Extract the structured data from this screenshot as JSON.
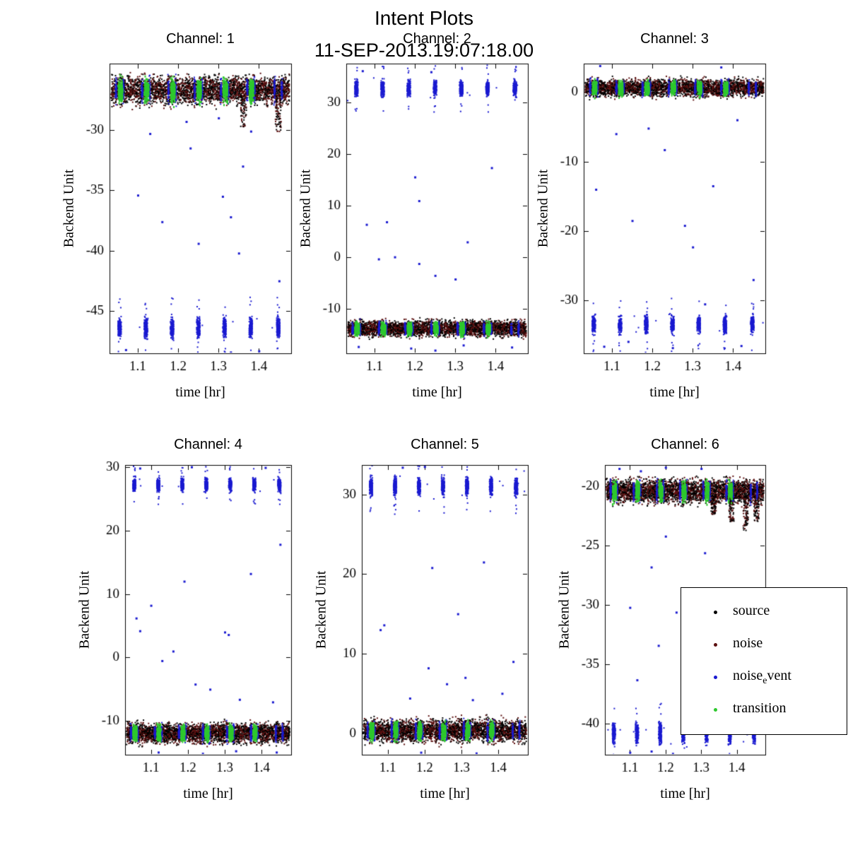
{
  "figure": {
    "title": "Intent Plots",
    "subtitle": "11-SEP-2013.19:07:18.00"
  },
  "colors": {
    "source": "#000000",
    "noise": "#5c1010",
    "noise_event": "#1a1ad0",
    "transition": "#2ec82e",
    "axis": "#000000",
    "background": "#ffffff"
  },
  "legend": {
    "position": "bottom-right-overlay",
    "items": [
      {
        "pre": "source",
        "sub": "",
        "post": "",
        "color": "#000000"
      },
      {
        "pre": "noise",
        "sub": "",
        "post": "",
        "color": "#5c1010"
      },
      {
        "pre": "noise",
        "sub": "e",
        "post": "vent",
        "color": "#1a1ad0"
      },
      {
        "pre": "transition",
        "sub": "",
        "post": "",
        "color": "#2ec82e"
      }
    ]
  },
  "chart_data": [
    {
      "type": "scatter",
      "grid": false,
      "title": "Channel: 1",
      "xlabel": "time [hr]",
      "ylabel": "Backend Unit",
      "xlim": [
        1.03,
        1.48
      ],
      "ylim": [
        -48.5,
        -24.5
      ],
      "xticks": [
        1.1,
        1.2,
        1.3,
        1.4
      ],
      "yticks": [
        -30,
        -35,
        -40,
        -45
      ],
      "cluster_xs": [
        1.055,
        1.12,
        1.185,
        1.25,
        1.315,
        1.38,
        1.448
      ],
      "transition_xs": [
        1.057,
        1.122,
        1.187,
        1.252,
        1.317,
        1.382
      ],
      "band": {
        "y": -26.7,
        "half": 1.5,
        "drips": [
          {
            "x": 1.362,
            "depth": 2.6
          },
          {
            "x": 1.448,
            "depth": 3.0
          }
        ]
      },
      "event": {
        "y": -46.4,
        "half": 1.3
      },
      "outliers": [
        [
          1.13,
          -30.3
        ],
        [
          1.22,
          -29.3
        ],
        [
          1.1,
          -35.4
        ],
        [
          1.16,
          -37.6
        ],
        [
          1.25,
          -39.4
        ],
        [
          1.31,
          -35.5
        ],
        [
          1.33,
          -37.2
        ],
        [
          1.3,
          -29.0
        ],
        [
          1.36,
          -33.0
        ],
        [
          1.38,
          -30.1
        ],
        [
          1.35,
          -40.2
        ],
        [
          1.45,
          -42.5
        ],
        [
          1.23,
          -31.5
        ],
        [
          1.07,
          -48.2
        ],
        [
          1.33,
          -48.4
        ],
        [
          1.4,
          -48.3
        ],
        [
          1.46,
          -48.5
        ]
      ]
    },
    {
      "type": "scatter",
      "grid": false,
      "title": "Channel: 2",
      "xlabel": "time [hr]",
      "ylabel": "Backend Unit",
      "xlim": [
        1.03,
        1.48
      ],
      "ylim": [
        -18.6,
        37.6
      ],
      "xticks": [
        1.1,
        1.2,
        1.3,
        1.4
      ],
      "yticks": [
        30,
        20,
        10,
        0,
        -10
      ],
      "cluster_xs": [
        1.055,
        1.12,
        1.185,
        1.25,
        1.315,
        1.38,
        1.448
      ],
      "transition_xs": [
        1.057,
        1.122,
        1.187,
        1.252,
        1.317,
        1.382
      ],
      "band": {
        "y": -13.8,
        "half": 2.0,
        "drips": []
      },
      "event": {
        "y": 32.8,
        "half": 2.2
      },
      "outliers": [
        [
          1.2,
          15.6
        ],
        [
          1.39,
          17.4
        ],
        [
          1.21,
          11.0
        ],
        [
          1.13,
          6.9
        ],
        [
          1.08,
          6.4
        ],
        [
          1.15,
          0.1
        ],
        [
          1.25,
          -3.5
        ],
        [
          1.21,
          -1.2
        ],
        [
          1.3,
          -4.2
        ],
        [
          1.11,
          -0.3
        ],
        [
          1.33,
          3.0
        ],
        [
          1.06,
          -17.3
        ],
        [
          1.19,
          -17.6
        ],
        [
          1.32,
          -17.0
        ],
        [
          1.44,
          -17.4
        ],
        [
          1.25,
          -18.0
        ],
        [
          1.07,
          36.2
        ],
        [
          1.24,
          36.0
        ]
      ]
    },
    {
      "type": "scatter",
      "grid": false,
      "title": "Channel: 3",
      "xlabel": "time [hr]",
      "ylabel": "Backend Unit",
      "xlim": [
        1.03,
        1.48
      ],
      "ylim": [
        -37.6,
        4.1
      ],
      "xticks": [
        1.1,
        1.2,
        1.3,
        1.4
      ],
      "yticks": [
        0,
        -10,
        -20,
        -30
      ],
      "cluster_xs": [
        1.055,
        1.12,
        1.185,
        1.25,
        1.315,
        1.38,
        1.448
      ],
      "transition_xs": [
        1.057,
        1.122,
        1.187,
        1.252,
        1.317,
        1.382
      ],
      "band": {
        "y": 0.6,
        "half": 1.6,
        "drips": []
      },
      "event": {
        "y": -33.5,
        "half": 1.9
      },
      "outliers": [
        [
          1.11,
          -6.0
        ],
        [
          1.19,
          -5.2
        ],
        [
          1.06,
          -14.0
        ],
        [
          1.15,
          -18.5
        ],
        [
          1.23,
          -8.3
        ],
        [
          1.28,
          -19.2
        ],
        [
          1.3,
          -22.3
        ],
        [
          1.35,
          -13.5
        ],
        [
          1.41,
          -4.0
        ],
        [
          1.45,
          -27.0
        ],
        [
          1.33,
          -30.5
        ],
        [
          1.08,
          -36.6
        ],
        [
          1.25,
          -36.8
        ],
        [
          1.42,
          -36.5
        ],
        [
          1.14,
          -35.9
        ],
        [
          1.07,
          3.8
        ],
        [
          1.37,
          3.6
        ]
      ]
    },
    {
      "type": "scatter",
      "grid": false,
      "title": "Channel: 4",
      "xlabel": "time [hr]",
      "ylabel": "Backend Unit",
      "xlim": [
        1.03,
        1.48
      ],
      "ylim": [
        -15.3,
        30.3
      ],
      "xticks": [
        1.1,
        1.2,
        1.3,
        1.4
      ],
      "yticks": [
        30,
        20,
        10,
        0,
        -10
      ],
      "cluster_xs": [
        1.055,
        1.12,
        1.185,
        1.25,
        1.315,
        1.38,
        1.448
      ],
      "transition_xs": [
        1.057,
        1.122,
        1.187,
        1.252,
        1.317,
        1.382
      ],
      "band": {
        "y": -11.9,
        "half": 2.0,
        "drips": []
      },
      "event": {
        "y": 27.2,
        "half": 1.5
      },
      "outliers": [
        [
          1.07,
          29.8
        ],
        [
          1.45,
          17.8
        ],
        [
          1.37,
          13.2
        ],
        [
          1.19,
          12.0
        ],
        [
          1.1,
          8.2
        ],
        [
          1.06,
          6.2
        ],
        [
          1.07,
          4.2
        ],
        [
          1.16,
          1.0
        ],
        [
          1.3,
          4.0
        ],
        [
          1.31,
          3.6
        ],
        [
          1.13,
          -0.5
        ],
        [
          1.22,
          -4.2
        ],
        [
          1.26,
          -5.0
        ],
        [
          1.34,
          -6.6
        ],
        [
          1.43,
          -7.0
        ],
        [
          1.12,
          -14.9
        ],
        [
          1.24,
          -15.1
        ],
        [
          1.33,
          -14.7
        ],
        [
          1.44,
          -14.9
        ],
        [
          1.21,
          30.0
        ],
        [
          1.41,
          29.9
        ]
      ]
    },
    {
      "type": "scatter",
      "grid": false,
      "title": "Channel: 5",
      "xlabel": "time [hr]",
      "ylabel": "Backend Unit",
      "xlim": [
        1.03,
        1.48
      ],
      "ylim": [
        -2.7,
        33.7
      ],
      "xticks": [
        1.1,
        1.2,
        1.3,
        1.4
      ],
      "yticks": [
        30,
        20,
        10,
        0
      ],
      "cluster_xs": [
        1.055,
        1.12,
        1.185,
        1.25,
        1.315,
        1.38,
        1.448
      ],
      "transition_xs": [
        1.057,
        1.122,
        1.187,
        1.252,
        1.317,
        1.382
      ],
      "band": {
        "y": 0.3,
        "half": 1.8,
        "drips": []
      },
      "event": {
        "y": 31.0,
        "half": 1.7
      },
      "outliers": [
        [
          1.22,
          20.8
        ],
        [
          1.36,
          21.5
        ],
        [
          1.29,
          15.0
        ],
        [
          1.09,
          13.6
        ],
        [
          1.08,
          13.0
        ],
        [
          1.21,
          8.2
        ],
        [
          1.31,
          7.0
        ],
        [
          1.26,
          6.2
        ],
        [
          1.41,
          5.0
        ],
        [
          1.16,
          4.4
        ],
        [
          1.14,
          33.4
        ],
        [
          1.2,
          33.5
        ],
        [
          1.33,
          4.2
        ],
        [
          1.44,
          9.0
        ],
        [
          1.19,
          -2.4
        ],
        [
          1.34,
          -2.5
        ]
      ]
    },
    {
      "type": "scatter",
      "grid": false,
      "title": "Channel: 6",
      "xlabel": "time [hr]",
      "ylabel": "Backend Unit",
      "xlim": [
        1.03,
        1.48
      ],
      "ylim": [
        -42.6,
        -18.2
      ],
      "xticks": [
        1.1,
        1.2,
        1.3,
        1.4
      ],
      "yticks": [
        -20,
        -25,
        -30,
        -35,
        -40
      ],
      "cluster_xs": [
        1.055,
        1.12,
        1.185,
        1.25,
        1.315,
        1.38,
        1.448
      ],
      "transition_xs": [
        1.057,
        1.122,
        1.187,
        1.252,
        1.317,
        1.382
      ],
      "band": {
        "y": -20.4,
        "half": 1.3,
        "drips": [
          {
            "x": 1.335,
            "depth": 1.6
          },
          {
            "x": 1.385,
            "depth": 2.2
          },
          {
            "x": 1.425,
            "depth": 3.0
          },
          {
            "x": 1.455,
            "depth": 2.2
          }
        ]
      },
      "event": {
        "y": -40.8,
        "half": 1.3
      },
      "outliers": [
        [
          1.2,
          -24.2
        ],
        [
          1.31,
          -25.6
        ],
        [
          1.16,
          -26.8
        ],
        [
          1.1,
          -30.2
        ],
        [
          1.18,
          -33.4
        ],
        [
          1.12,
          -36.3
        ],
        [
          1.23,
          -30.6
        ],
        [
          1.07,
          -18.5
        ],
        [
          1.2,
          -18.4
        ],
        [
          1.13,
          -18.7
        ],
        [
          1.3,
          -18.5
        ],
        [
          1.1,
          -42.4
        ],
        [
          1.22,
          -42.5
        ],
        [
          1.16,
          -42.3
        ]
      ]
    }
  ]
}
